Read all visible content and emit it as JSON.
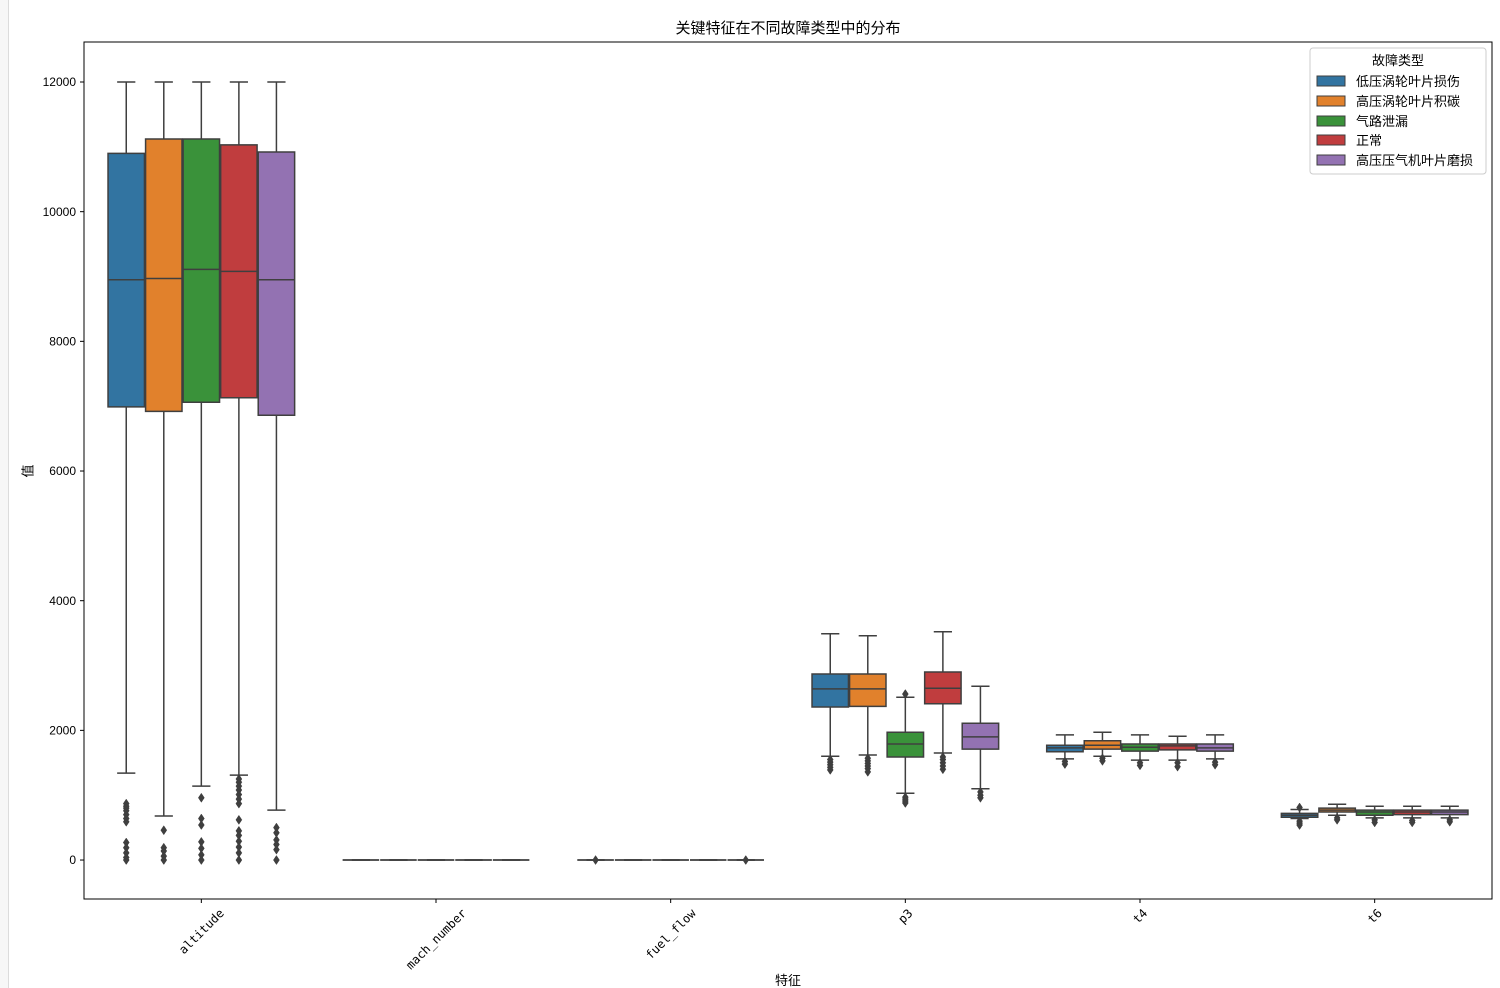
{
  "chart_data": {
    "type": "box",
    "title": "关键特征在不同故障类型中的分布",
    "xlabel": "特征",
    "ylabel": "值",
    "ylim": [
      -601,
      12617
    ],
    "yticks": [
      0,
      2000,
      4000,
      6000,
      8000,
      10000,
      12000
    ],
    "grid": false,
    "categories": [
      "altitude",
      "mach_number",
      "fuel_flow",
      "p3",
      "t4",
      "t6"
    ],
    "legend": {
      "title": "故障类型",
      "location": "upper right"
    },
    "series": [
      {
        "name": "低压涡轮叶片损伤",
        "color": "#3274a1",
        "boxes": [
          {
            "whislo": 1340,
            "q1": 6990,
            "med": 8950,
            "q3": 10900,
            "whishi": 12000,
            "fliers": [
              870,
              830,
              800,
              760,
              700,
              640,
              590,
              270,
              190,
              110,
              40,
              0
            ]
          },
          {
            "whislo": 0,
            "q1": 0,
            "med": 0,
            "q3": 0,
            "whishi": 0,
            "fliers": []
          },
          {
            "whislo": 0,
            "q1": 0,
            "med": 0,
            "q3": 0,
            "whishi": 0,
            "fliers": [
              0
            ]
          },
          {
            "whislo": 1600,
            "q1": 2360,
            "med": 2640,
            "q3": 2870,
            "whishi": 3490,
            "fliers": [
              1550,
              1510,
              1470,
              1430,
              1390
            ]
          },
          {
            "whislo": 1560,
            "q1": 1670,
            "med": 1730,
            "q3": 1770,
            "whishi": 1930,
            "fliers": [
              1520,
              1480
            ]
          },
          {
            "whislo": 640,
            "q1": 660,
            "med": 690,
            "q3": 720,
            "whishi": 780,
            "fliers": [
              810,
              600,
              570,
              540
            ]
          }
        ]
      },
      {
        "name": "高压涡轮叶片积碳",
        "color": "#e1812c",
        "boxes": [
          {
            "whislo": 680,
            "q1": 6920,
            "med": 8970,
            "q3": 11120,
            "whishi": 12000,
            "fliers": [
              460,
              190,
              140,
              60,
              0
            ]
          },
          {
            "whislo": 0,
            "q1": 0,
            "med": 0,
            "q3": 0,
            "whishi": 0,
            "fliers": []
          },
          {
            "whislo": 0,
            "q1": 0,
            "med": 0,
            "q3": 0,
            "whishi": 0,
            "fliers": []
          },
          {
            "whislo": 1620,
            "q1": 2370,
            "med": 2640,
            "q3": 2870,
            "whishi": 3460,
            "fliers": [
              1570,
              1530,
              1490,
              1450,
              1410,
              1360
            ]
          },
          {
            "whislo": 1600,
            "q1": 1710,
            "med": 1770,
            "q3": 1840,
            "whishi": 1970,
            "fliers": [
              1570,
              1530
            ]
          },
          {
            "whislo": 690,
            "q1": 740,
            "med": 770,
            "q3": 800,
            "whishi": 860,
            "fliers": [
              650,
              620
            ]
          }
        ]
      },
      {
        "name": "气路泄漏",
        "color": "#3a923a",
        "boxes": [
          {
            "whislo": 1140,
            "q1": 7060,
            "med": 9110,
            "q3": 11120,
            "whishi": 12000,
            "fliers": [
              960,
              640,
              540,
              280,
              180,
              80,
              0
            ]
          },
          {
            "whislo": 0,
            "q1": 0,
            "med": 0,
            "q3": 0,
            "whishi": 0,
            "fliers": []
          },
          {
            "whislo": 0,
            "q1": 0,
            "med": 0,
            "q3": 0,
            "whishi": 0,
            "fliers": []
          },
          {
            "whislo": 1030,
            "q1": 1590,
            "med": 1790,
            "q3": 1970,
            "whishi": 2510,
            "fliers": [
              2560,
              970,
              940,
              910,
              880
            ]
          },
          {
            "whislo": 1540,
            "q1": 1680,
            "med": 1740,
            "q3": 1790,
            "whishi": 1930,
            "fliers": [
              1500,
              1460
            ]
          },
          {
            "whislo": 650,
            "q1": 690,
            "med": 740,
            "q3": 770,
            "whishi": 830,
            "fliers": [
              620,
              580
            ]
          }
        ]
      },
      {
        "name": "正常",
        "color": "#c03d3e",
        "boxes": [
          {
            "whislo": 1310,
            "q1": 7130,
            "med": 9080,
            "q3": 11030,
            "whishi": 12000,
            "fliers": [
              1250,
              1200,
              1140,
              1080,
              1010,
              940,
              870,
              620,
              450,
              380,
              290,
              200,
              110,
              0
            ]
          },
          {
            "whislo": 0,
            "q1": 0,
            "med": 0,
            "q3": 0,
            "whishi": 0,
            "fliers": []
          },
          {
            "whislo": 0,
            "q1": 0,
            "med": 0,
            "q3": 0,
            "whishi": 0,
            "fliers": []
          },
          {
            "whislo": 1650,
            "q1": 2410,
            "med": 2650,
            "q3": 2900,
            "whishi": 3520,
            "fliers": [
              1590,
              1550,
              1500,
              1450,
              1400
            ]
          },
          {
            "whislo": 1540,
            "q1": 1700,
            "med": 1760,
            "q3": 1790,
            "whishi": 1910,
            "fliers": [
              1500,
              1440
            ]
          },
          {
            "whislo": 650,
            "q1": 700,
            "med": 740,
            "q3": 770,
            "whishi": 830,
            "fliers": [
              610,
              580
            ]
          }
        ]
      },
      {
        "name": "高压压气机叶片磨损",
        "color": "#9372b2",
        "boxes": [
          {
            "whislo": 770,
            "q1": 6860,
            "med": 8950,
            "q3": 10920,
            "whishi": 12000,
            "fliers": [
              500,
              420,
              310,
              240,
              160,
              0
            ]
          },
          {
            "whislo": 0,
            "q1": 0,
            "med": 0,
            "q3": 0,
            "whishi": 0,
            "fliers": []
          },
          {
            "whislo": 0,
            "q1": 0,
            "med": 0,
            "q3": 0,
            "whishi": 0,
            "fliers": [
              0
            ]
          },
          {
            "whislo": 1100,
            "q1": 1710,
            "med": 1900,
            "q3": 2110,
            "whishi": 2680,
            "fliers": [
              1050,
              1000,
              960
            ]
          },
          {
            "whislo": 1560,
            "q1": 1680,
            "med": 1730,
            "q3": 1790,
            "whishi": 1930,
            "fliers": [
              1510,
              1470
            ]
          },
          {
            "whislo": 650,
            "q1": 700,
            "med": 740,
            "q3": 770,
            "whishi": 830,
            "fliers": [
              620,
              590
            ]
          }
        ]
      }
    ]
  }
}
